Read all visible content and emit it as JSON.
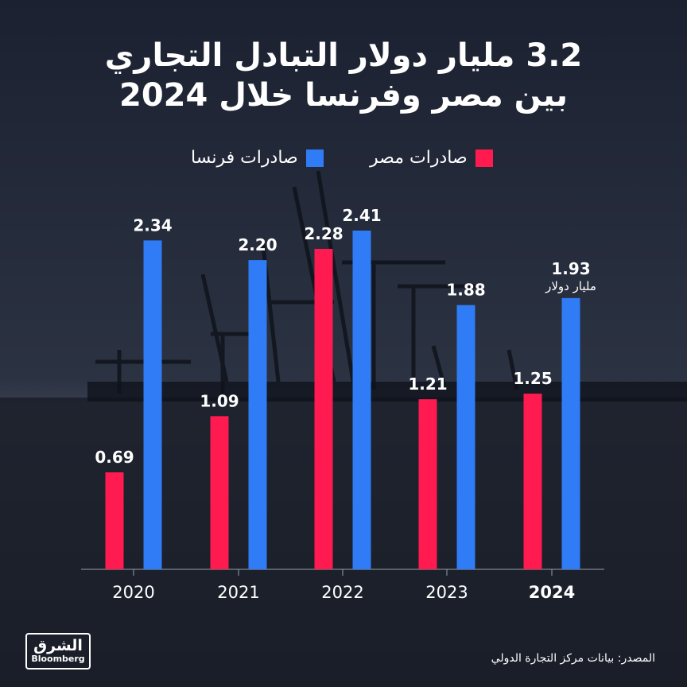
{
  "title": {
    "line1": "3.2 مليار دولار التبادل التجاري",
    "line2": "بين مصر وفرنسا خلال 2024"
  },
  "legend": [
    {
      "label": "صادرات مصر",
      "color": "#ff1a4f"
    },
    {
      "label": "صادرات فرنسا",
      "color": "#2f7cf6"
    }
  ],
  "chart_data": {
    "type": "bar",
    "categories": [
      "2020",
      "2021",
      "2022",
      "2023",
      "2024"
    ],
    "series": [
      {
        "name": "صادرات مصر",
        "color": "#ff1a4f",
        "values": [
          0.69,
          1.09,
          2.28,
          1.21,
          1.25
        ]
      },
      {
        "name": "صادرات فرنسا",
        "color": "#2f7cf6",
        "values": [
          2.34,
          2.2,
          2.41,
          1.88,
          1.93
        ]
      }
    ],
    "value_labels": {
      "series0": [
        "0.69",
        "1.09",
        "2.28",
        "1.21",
        "1.25"
      ],
      "series1": [
        "2.34",
        "2.20",
        "2.41",
        "1.88",
        "1.93"
      ]
    },
    "unit_annotation": "مليار دولار",
    "ylim": [
      0,
      2.41
    ],
    "highlight_category": "2024",
    "grid": false
  },
  "source": "المصدر: بيانات مركز التجارة الدولي",
  "logo": {
    "arabic": "الشرق",
    "english": "Bloomberg"
  }
}
